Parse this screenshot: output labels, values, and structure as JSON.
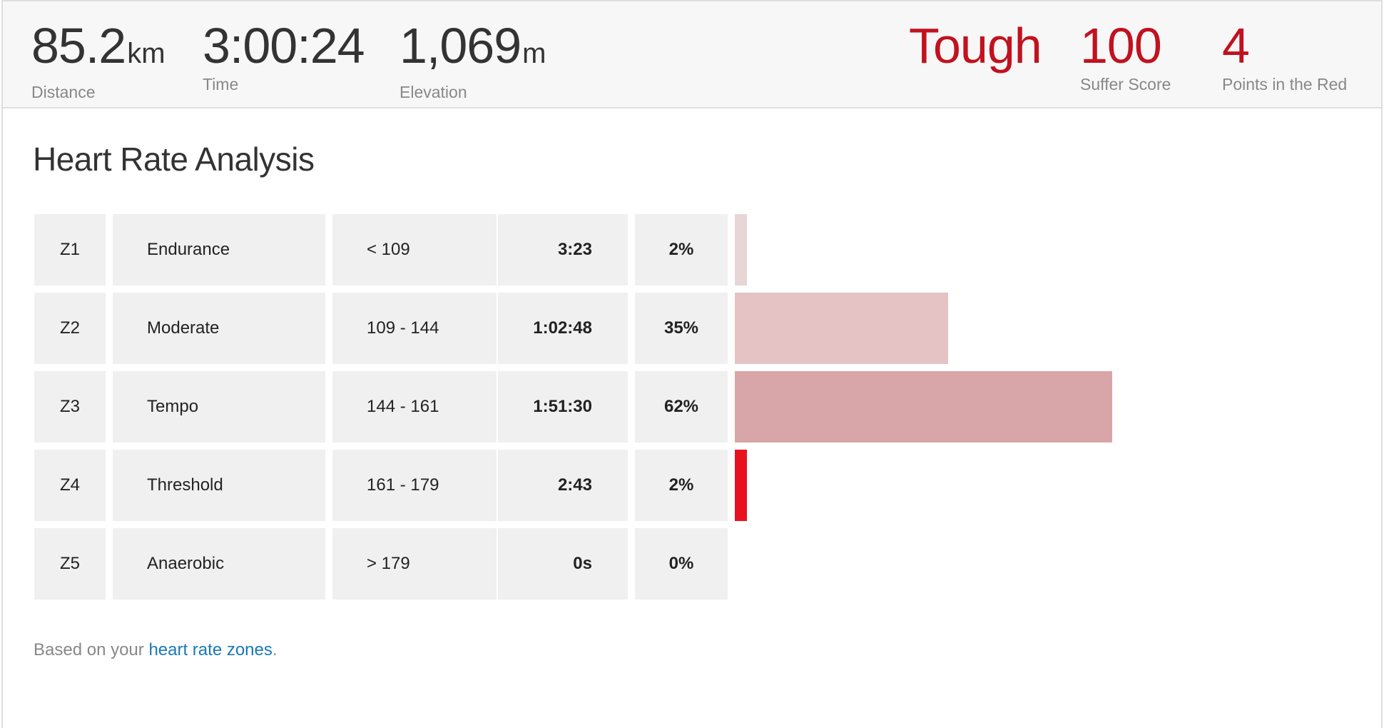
{
  "stats": {
    "distance": {
      "value": "85.2",
      "unit": "km",
      "label": "Distance"
    },
    "time": {
      "value": "3:00:24",
      "label": "Time"
    },
    "elevation": {
      "value": "1,069",
      "unit": "m",
      "label": "Elevation"
    },
    "intensity": {
      "value": "Tough"
    },
    "suffer": {
      "value": "100",
      "label": "Suffer Score"
    },
    "red_points": {
      "value": "4",
      "label": "Points in the Red"
    }
  },
  "section_title": "Heart Rate Analysis",
  "zones": [
    {
      "id": "Z1",
      "name": "Endurance",
      "range": "< 109",
      "time": "3:23",
      "pct": "2%",
      "fraction": 0.02,
      "color": "#e8d5d6"
    },
    {
      "id": "Z2",
      "name": "Moderate",
      "range": "109 - 144",
      "time": "1:02:48",
      "pct": "35%",
      "fraction": 0.35,
      "color": "#e5c2c3"
    },
    {
      "id": "Z3",
      "name": "Tempo",
      "range": "144 - 161",
      "time": "1:51:30",
      "pct": "62%",
      "fraction": 0.62,
      "color": "#d8a6a8"
    },
    {
      "id": "Z4",
      "name": "Threshold",
      "range": "161 - 179",
      "time": "2:43",
      "pct": "2%",
      "fraction": 0.02,
      "color": "#e8121f"
    },
    {
      "id": "Z5",
      "name": "Anaerobic",
      "range": "> 179",
      "time": "0s",
      "pct": "0%",
      "fraction": 0.0,
      "color": "#e8121f"
    }
  ],
  "footnote": {
    "prefix": "Based on your ",
    "link": "heart rate zones",
    "suffix": "."
  },
  "colors": {
    "accent_red": "#c1121f",
    "link_blue": "#1a78b8"
  }
}
